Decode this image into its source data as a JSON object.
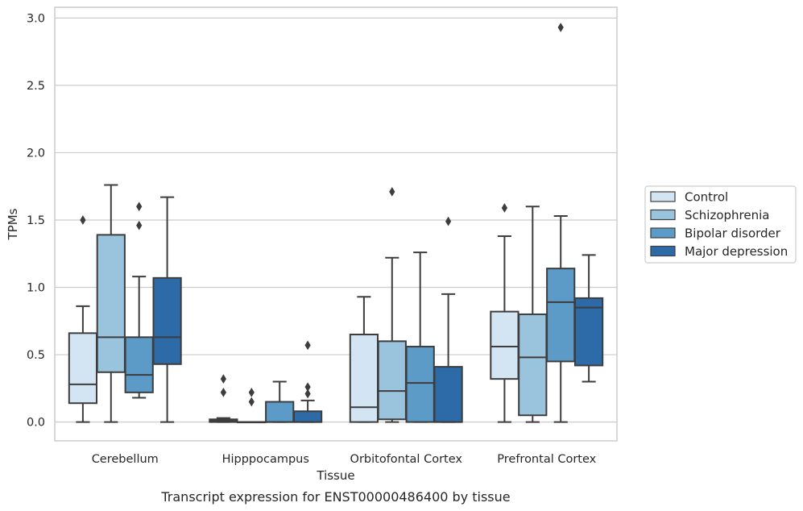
{
  "caption": "Transcript expression for ENST00000486400 by tissue",
  "chart_data": {
    "type": "box",
    "xlabel": "Tissue",
    "ylabel": "TPMs",
    "ylim": [
      -0.14,
      3.08
    ],
    "yticks": [
      "0.0",
      "0.5",
      "1.0",
      "1.5",
      "2.0",
      "2.5",
      "3.0"
    ],
    "grid": true,
    "legend_position": "right",
    "categories": [
      "Cerebellum",
      "Hipppocampus",
      "Orbitofontal Cortex",
      "Prefrontal Cortex"
    ],
    "series": [
      {
        "name": "Control",
        "color": "#d3e4f3",
        "boxes": [
          {
            "whisker_low": 0.0,
            "q1": 0.14,
            "median": 0.28,
            "q3": 0.66,
            "whisker_high": 0.86,
            "outliers": [
              1.5
            ]
          },
          {
            "whisker_low": 0.0,
            "q1": 0.0,
            "median": 0.01,
            "q3": 0.02,
            "whisker_high": 0.03,
            "outliers": [
              0.32,
              0.22
            ]
          },
          {
            "whisker_low": 0.0,
            "q1": 0.0,
            "median": 0.11,
            "q3": 0.65,
            "whisker_high": 0.93,
            "outliers": []
          },
          {
            "whisker_low": 0.0,
            "q1": 0.32,
            "median": 0.56,
            "q3": 0.82,
            "whisker_high": 1.38,
            "outliers": [
              1.59
            ]
          }
        ]
      },
      {
        "name": "Schizophrenia",
        "color": "#9ac3dd",
        "boxes": [
          {
            "whisker_low": 0.0,
            "q1": 0.37,
            "median": 0.63,
            "q3": 1.39,
            "whisker_high": 1.76,
            "outliers": []
          },
          {
            "whisker_low": 0.0,
            "q1": 0.0,
            "median": 0.0,
            "q3": 0.0,
            "whisker_high": 0.0,
            "outliers": [
              0.22,
              0.15
            ]
          },
          {
            "whisker_low": 0.0,
            "q1": 0.02,
            "median": 0.23,
            "q3": 0.6,
            "whisker_high": 1.22,
            "outliers": [
              1.71
            ]
          },
          {
            "whisker_low": 0.0,
            "q1": 0.05,
            "median": 0.48,
            "q3": 0.8,
            "whisker_high": 1.6,
            "outliers": []
          }
        ]
      },
      {
        "name": "Bipolar disorder",
        "color": "#5c9bc8",
        "boxes": [
          {
            "whisker_low": 0.18,
            "q1": 0.22,
            "median": 0.35,
            "q3": 0.63,
            "whisker_high": 1.08,
            "outliers": [
              1.6,
              1.46
            ]
          },
          {
            "whisker_low": 0.0,
            "q1": 0.0,
            "median": 0.0,
            "q3": 0.15,
            "whisker_high": 0.3,
            "outliers": []
          },
          {
            "whisker_low": 0.0,
            "q1": 0.0,
            "median": 0.29,
            "q3": 0.56,
            "whisker_high": 1.26,
            "outliers": []
          },
          {
            "whisker_low": 0.0,
            "q1": 0.45,
            "median": 0.89,
            "q3": 1.14,
            "whisker_high": 1.53,
            "outliers": [
              2.93
            ]
          }
        ]
      },
      {
        "name": "Major depression",
        "color": "#2c6aa8",
        "boxes": [
          {
            "whisker_low": 0.0,
            "q1": 0.43,
            "median": 0.63,
            "q3": 1.07,
            "whisker_high": 1.67,
            "outliers": []
          },
          {
            "whisker_low": 0.0,
            "q1": 0.0,
            "median": 0.0,
            "q3": 0.08,
            "whisker_high": 0.16,
            "outliers": [
              0.57,
              0.26,
              0.21
            ]
          },
          {
            "whisker_low": 0.0,
            "q1": 0.0,
            "median": 0.0,
            "q3": 0.41,
            "whisker_high": 0.95,
            "outliers": [
              1.49
            ]
          },
          {
            "whisker_low": 0.3,
            "q1": 0.42,
            "median": 0.85,
            "q3": 0.92,
            "whisker_high": 1.24,
            "outliers": []
          }
        ]
      }
    ]
  }
}
